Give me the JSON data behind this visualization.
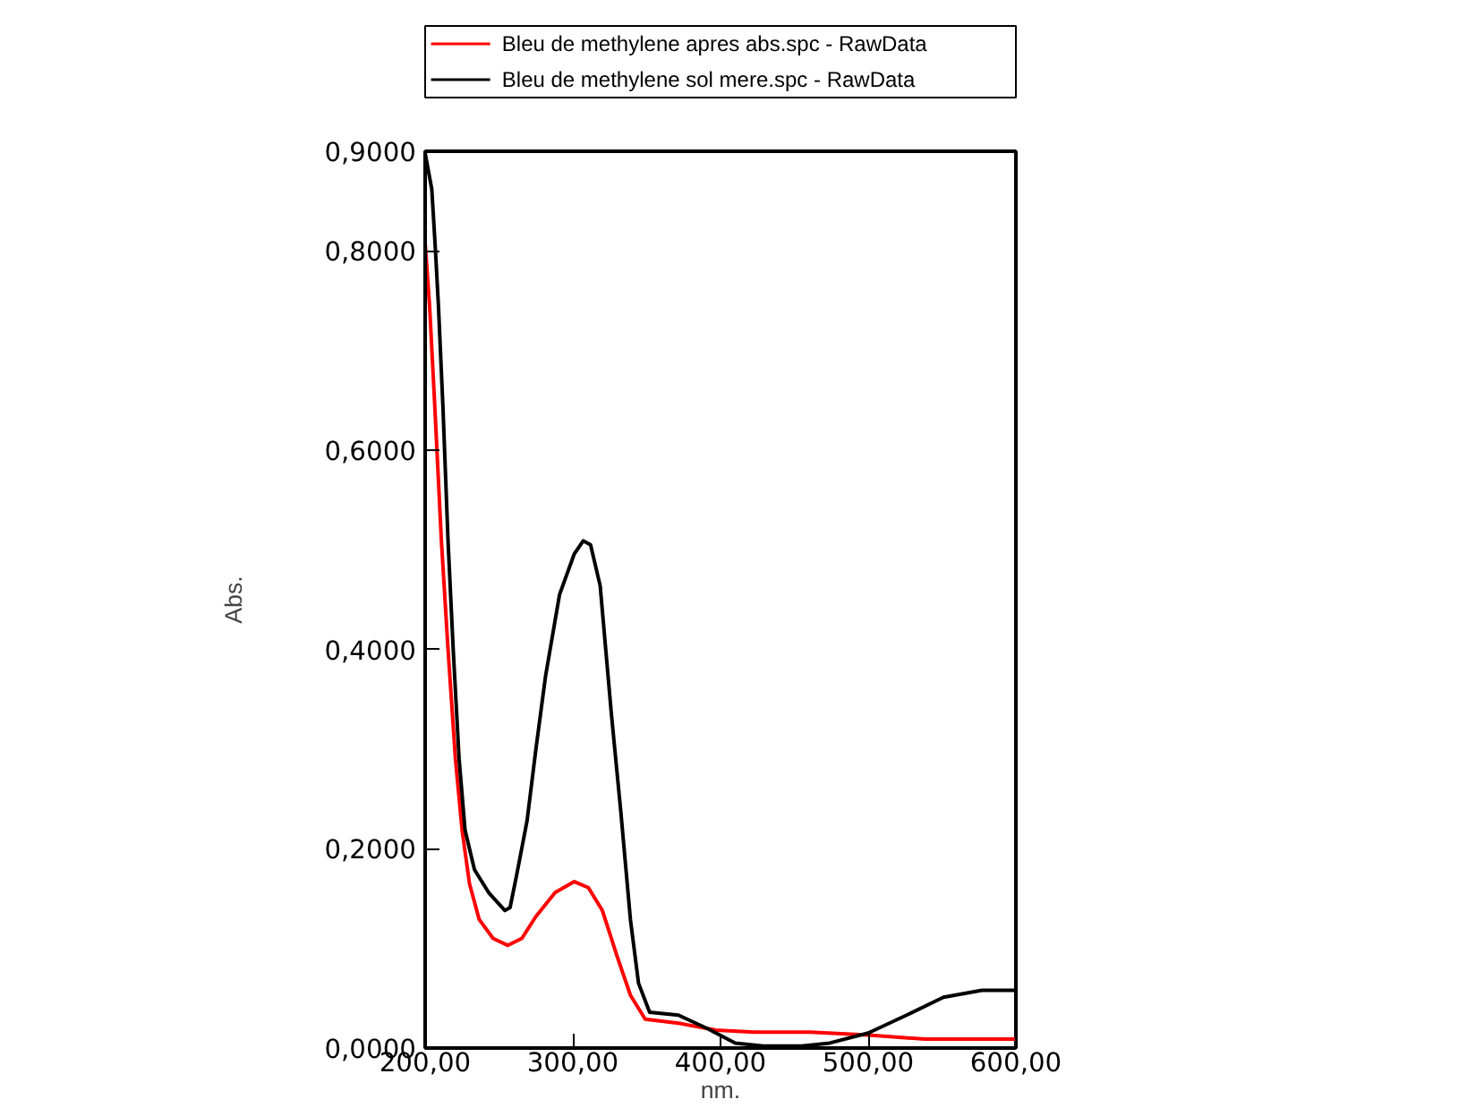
{
  "chart_data": {
    "type": "line",
    "xlabel": "nm.",
    "ylabel": "Abs.",
    "xlim": [
      200,
      600
    ],
    "ylim": [
      0,
      0.9
    ],
    "xticks": [
      {
        "value": 200,
        "label": "200,00"
      },
      {
        "value": 300,
        "label": "300,00"
      },
      {
        "value": 400,
        "label": "400,00"
      },
      {
        "value": 500,
        "label": "500,00"
      },
      {
        "value": 600,
        "label": "600,00"
      }
    ],
    "yticks": [
      {
        "value": 0,
        "label": "0,0000"
      },
      {
        "value": 0.2,
        "label": "0,2000"
      },
      {
        "value": 0.4,
        "label": "0,4000"
      },
      {
        "value": 0.6,
        "label": "0,6000"
      },
      {
        "value": 0.8,
        "label": "0,8000"
      },
      {
        "value": 0.9,
        "label": "0,9000"
      }
    ],
    "grid": false,
    "legend": "top",
    "marker": "none",
    "line_style": "solid",
    "series": [
      {
        "name": "Bleu de methylene apres abs.spc - RawData",
        "color": "#ff0000",
        "x": [
          200,
          203,
          206.5,
          211,
          215.5,
          220.5,
          225,
          230,
          236.6,
          246,
          256,
          265.5,
          275,
          288,
          301,
          310.5,
          320,
          330,
          339,
          349,
          371.5,
          397,
          423,
          461,
          500,
          538.5,
          600
        ],
        "values": [
          0.808,
          0.745,
          0.645,
          0.509,
          0.4,
          0.29,
          0.219,
          0.165,
          0.129,
          0.11,
          0.103,
          0.11,
          0.132,
          0.156,
          0.167,
          0.161,
          0.138,
          0.092,
          0.053,
          0.029,
          0.025,
          0.018,
          0.016,
          0.016,
          0.013,
          0.009,
          0.009
        ]
      },
      {
        "name": "Bleu de methylene sol mere.spc - RawData",
        "color": "#000000",
        "x": [
          200,
          204.5,
          207,
          209,
          212,
          215.5,
          219,
          223,
          227,
          233.4,
          243,
          254,
          257.5,
          262,
          269,
          275,
          281.5,
          291,
          301,
          307,
          312,
          318.5,
          326,
          332.5,
          339,
          344.5,
          352,
          371.5,
          390.5,
          410,
          429,
          455,
          474,
          500,
          526,
          551,
          577,
          600
        ],
        "values": [
          0.898,
          0.862,
          0.8,
          0.745,
          0.645,
          0.509,
          0.4,
          0.29,
          0.219,
          0.179,
          0.156,
          0.138,
          0.141,
          0.174,
          0.228,
          0.3,
          0.373,
          0.455,
          0.496,
          0.509,
          0.505,
          0.464,
          0.337,
          0.237,
          0.129,
          0.065,
          0.036,
          0.033,
          0.02,
          0.005,
          0.002,
          0.002,
          0.005,
          0.015,
          0.033,
          0.051,
          0.058,
          0.058
        ]
      }
    ]
  }
}
